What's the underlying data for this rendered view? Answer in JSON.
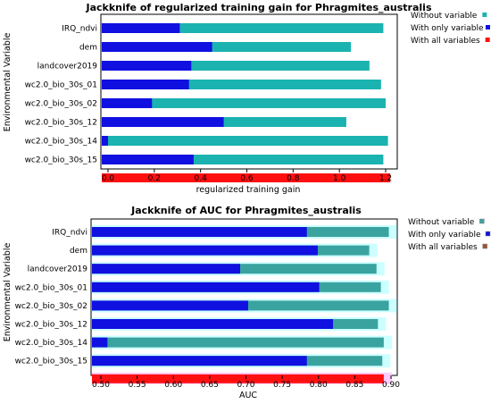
{
  "colors": {
    "without": "#1bb3b0",
    "without2": "#3aa3a0",
    "only": "#1010e0",
    "all": "#ff1010",
    "highlight": "#ccffff",
    "highlightPink": "#ffccff"
  },
  "chart_data": [
    {
      "type": "bar",
      "orientation": "horizontal",
      "title": "Jackknife of regularized training gain for Phragmites_australis",
      "xlabel": "regularized training gain",
      "ylabel": "Environmental Variable",
      "xlim": [
        0,
        1.25
      ],
      "xticks": [
        0.0,
        0.2,
        0.4,
        0.6,
        0.8,
        1.0,
        1.2
      ],
      "xtick_labels": [
        "0.0",
        "0.2",
        "0.4",
        "0.6",
        "0.8",
        "1.0",
        "1.2"
      ],
      "categories": [
        "IRQ_ndvi",
        "dem",
        "landcover2019",
        "wc2.0_bio_30s_01",
        "wc2.0_bio_30s_02",
        "wc2.0_bio_30s_12",
        "wc2.0_bio_30s_14",
        "wc2.0_bio_30s_15"
      ],
      "series": [
        {
          "name": "Without variable",
          "values": [
            1.19,
            1.05,
            1.13,
            1.18,
            1.2,
            1.03,
            1.21,
            1.19
          ]
        },
        {
          "name": "With only variable",
          "values": [
            0.31,
            0.45,
            0.36,
            0.35,
            0.19,
            0.5,
            0.0,
            0.37
          ]
        },
        {
          "name": "With all variables",
          "value": 1.22
        }
      ],
      "legend_position": "right"
    },
    {
      "type": "bar",
      "orientation": "horizontal",
      "title": "Jackknife of AUC for Phragmites_australis",
      "xlabel": "AUC",
      "ylabel": "Environmental Variable",
      "xlim": [
        0.485,
        0.91
      ],
      "xticks": [
        0.5,
        0.55,
        0.6,
        0.65,
        0.7,
        0.75,
        0.8,
        0.85,
        0.9
      ],
      "xtick_labels": [
        "0.50",
        "0.55",
        "0.60",
        "0.65",
        "0.70",
        "0.75",
        "0.80",
        "0.85",
        "0.90"
      ],
      "categories": [
        "IRQ_ndvi",
        "dem",
        "landcover2019",
        "wc2.0_bio_30s_01",
        "wc2.0_bio_30s_02",
        "wc2.0_bio_30s_12",
        "wc2.0_bio_30s_14",
        "wc2.0_bio_30s_15"
      ],
      "series": [
        {
          "name": "Without variable",
          "values": [
            0.897,
            0.87,
            0.88,
            0.886,
            0.897,
            0.882,
            0.89,
            0.888
          ]
        },
        {
          "name": "With only variable",
          "values": [
            0.784,
            0.799,
            0.692,
            0.801,
            0.703,
            0.82,
            0.509,
            0.784
          ]
        },
        {
          "name": "With all variables",
          "value": 0.89
        }
      ],
      "legend_position": "right"
    }
  ]
}
